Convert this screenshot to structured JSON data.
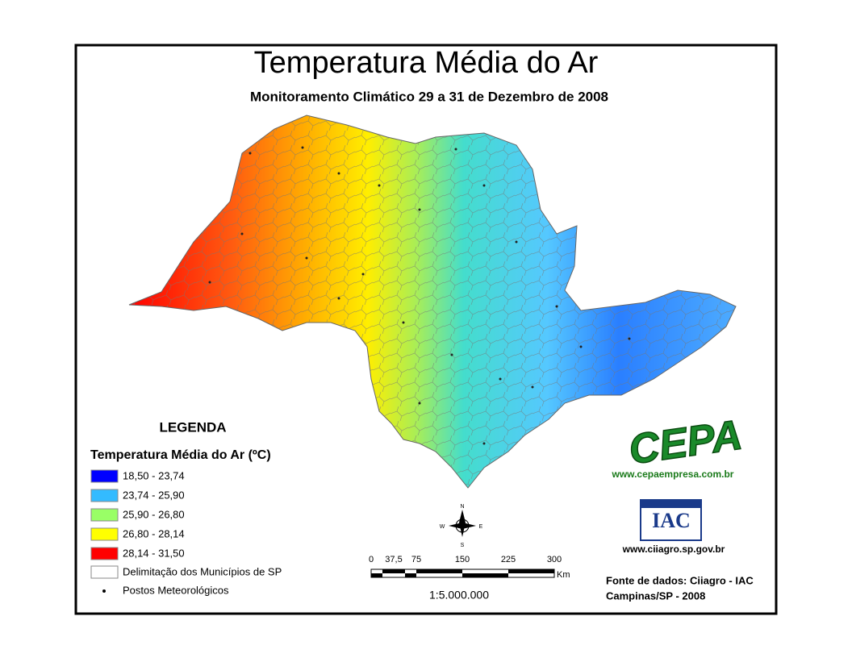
{
  "title": "Temperatura Média do Ar",
  "subtitle": "Monitoramento Climático 29 a 31 de Dezembro de 2008",
  "legend": {
    "heading": "LEGENDA",
    "title": "Temperatura Média do Ar (ºC)",
    "classes": [
      {
        "label": "18,50 - 23,74",
        "color": "#0000ff"
      },
      {
        "label": "23,74 - 25,90",
        "color": "#33bbff"
      },
      {
        "label": "25,90 - 26,80",
        "color": "#99ff66"
      },
      {
        "label": "26,80 - 28,14",
        "color": "#ffff00"
      },
      {
        "label": "28,14 - 31,50",
        "color": "#ff0000"
      }
    ],
    "boundary": "Delimitação dos Municípios de SP",
    "stations": "Postos Meteorológicos"
  },
  "compass": {
    "n": "N",
    "s": "S",
    "e": "E",
    "w": "W"
  },
  "scale_bar": {
    "ticks": [
      "0",
      "37,5",
      "75",
      "150",
      "225",
      "300"
    ],
    "unit": "Km",
    "ratio": "1:5.000.000"
  },
  "logos": {
    "cepa": "CEPA",
    "cepa_url": "www.cepaempresa.com.br",
    "iac": "IAC",
    "iac_url": "www.ciiagro.sp.gov.br"
  },
  "source": [
    "Fonte de dados: Ciiagro - IAC",
    "Campinas/SP - 2008"
  ]
}
